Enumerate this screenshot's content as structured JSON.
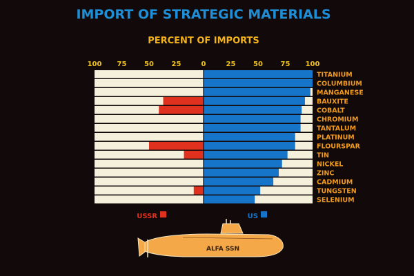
{
  "title": "IMPORT OF STRATEGIC MATERIALS",
  "subtitle": "PERCENT OF IMPORTS",
  "legend": {
    "ussr_label": "USSR",
    "us_label": "US"
  },
  "submarine_label": "ALFA SSN",
  "colors": {
    "background": "#120a0a",
    "title": "#1e8fd6",
    "subtitle": "#f2b21e",
    "ticks": "#f2c21e",
    "labels": "#f29a1e",
    "ussr": "#e0311e",
    "us": "#1675c8",
    "bar_bg": "#f4f0dc",
    "submarine": "#f4a848"
  },
  "chart_data": {
    "type": "bar",
    "orientation": "horizontal-diverging",
    "title": "IMPORT OF STRATEGIC MATERIALS",
    "subtitle": "PERCENT OF IMPORTS",
    "xlim": [
      -100,
      100
    ],
    "tick_labels": [
      "100",
      "75",
      "50",
      "25",
      "0",
      "25",
      "50",
      "75",
      "100"
    ],
    "categories": [
      "TITANIUM",
      "COLUMBIUM",
      "MANGANESE",
      "BAUXITE",
      "COBALT",
      "CHROMIUM",
      "TANTALUM",
      "PLATINUM",
      "FLOURSPAR",
      "TIN",
      "NICKEL",
      "ZINC",
      "CADMIUM",
      "TUNGSTEN",
      "SELENIUM"
    ],
    "series": [
      {
        "name": "USSR",
        "values": [
          0,
          0,
          0,
          37,
          41,
          0,
          0,
          0,
          50,
          18,
          0,
          0,
          0,
          9,
          0
        ]
      },
      {
        "name": "US",
        "values": [
          100,
          100,
          98,
          93,
          90,
          89,
          89,
          84,
          84,
          77,
          72,
          69,
          64,
          52,
          47
        ]
      }
    ],
    "legend_position": "bottom"
  }
}
